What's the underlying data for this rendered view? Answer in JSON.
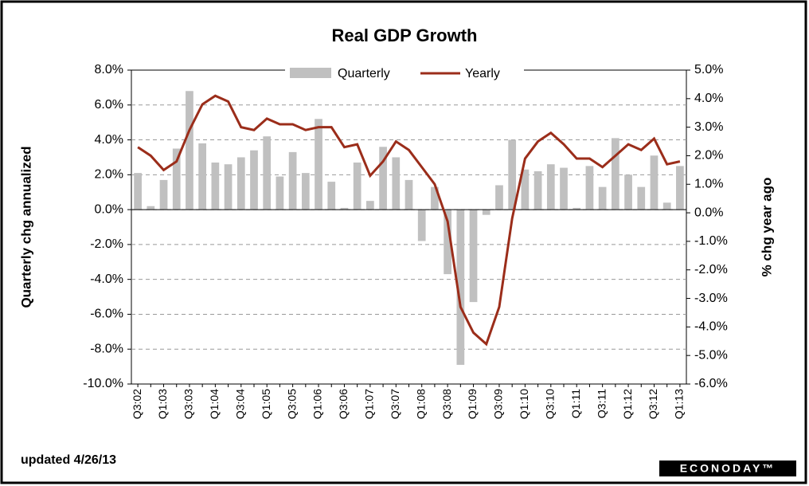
{
  "chart_data": {
    "type": "bar_line",
    "title": "Real GDP Growth",
    "y_label": "Quarterly chg annualized",
    "y2_label": "% chg year ago",
    "footnote": "updated 4/26/13",
    "source": "ECONODAY™",
    "categories": [
      "Q3:02",
      null,
      "Q1:03",
      null,
      "Q3:03",
      null,
      "Q1:04",
      null,
      "Q3:04",
      null,
      "Q1:05",
      null,
      "Q3:05",
      null,
      "Q1:06",
      null,
      "Q3:06",
      null,
      "Q1:07",
      null,
      "Q3:07",
      null,
      "Q1:08",
      null,
      "Q3:08",
      null,
      "Q1:09",
      null,
      "Q3:09",
      null,
      "Q1:10",
      null,
      "Q3:10",
      null,
      "Q1:11",
      null,
      "Q3:11",
      null,
      "Q1:12",
      null,
      "Q3:12",
      null,
      "Q1:13"
    ],
    "series": [
      {
        "name": "Quarterly",
        "color": "#c0c0c0",
        "values": [
          2.1,
          0.2,
          1.7,
          3.5,
          6.8,
          3.8,
          2.7,
          2.6,
          3.0,
          3.4,
          4.2,
          1.9,
          3.3,
          2.1,
          5.2,
          1.6,
          0.1,
          2.7,
          0.5,
          3.6,
          3.0,
          1.7,
          -1.8,
          1.3,
          -3.7,
          -8.9,
          -5.3,
          -0.3,
          1.4,
          4.0,
          2.3,
          2.2,
          2.6,
          2.4,
          0.1,
          2.5,
          1.3,
          4.1,
          2.0,
          1.3,
          3.1,
          0.4,
          2.5
        ]
      },
      {
        "name": "Yearly",
        "color": "#9b2d1a",
        "axis": "y2",
        "values": [
          2.3,
          2.0,
          1.5,
          1.8,
          2.9,
          3.8,
          4.1,
          3.9,
          3.0,
          2.9,
          3.3,
          3.1,
          3.1,
          2.9,
          3.0,
          3.0,
          2.3,
          2.4,
          1.3,
          1.8,
          2.5,
          2.2,
          1.6,
          1.0,
          -0.3,
          -3.3,
          -4.2,
          -4.6,
          -3.3,
          -0.2,
          1.9,
          2.5,
          2.8,
          2.4,
          1.9,
          1.9,
          1.6,
          2.0,
          2.4,
          2.2,
          2.6,
          1.7,
          1.8
        ]
      }
    ],
    "ylim": [
      -10,
      8
    ],
    "yticks": [
      {
        "value": 8,
        "label": "8.0%"
      },
      {
        "value": 6,
        "label": "6.0%"
      },
      {
        "value": 4,
        "label": "4.0%"
      },
      {
        "value": 2,
        "label": "2.0%"
      },
      {
        "value": 0,
        "label": "0.0%"
      },
      {
        "value": -2,
        "label": "-2.0%"
      },
      {
        "value": -4,
        "label": "-4.0%"
      },
      {
        "value": -6,
        "label": "-6.0%"
      },
      {
        "value": -8,
        "label": "-8.0%"
      },
      {
        "value": -10,
        "label": "-10.0%"
      }
    ],
    "y2lim": [
      -6,
      5
    ],
    "y2ticks": [
      {
        "value": 5,
        "label": "5.0%"
      },
      {
        "value": 4,
        "label": "4.0%"
      },
      {
        "value": 3,
        "label": "3.0%"
      },
      {
        "value": 2,
        "label": "2.0%"
      },
      {
        "value": 1,
        "label": "1.0%"
      },
      {
        "value": 0,
        "label": "0.0%"
      },
      {
        "value": -1,
        "label": "-1.0%"
      },
      {
        "value": -2,
        "label": "-2.0%"
      },
      {
        "value": -3,
        "label": "-3.0%"
      },
      {
        "value": -4,
        "label": "-4.0%"
      },
      {
        "value": -5,
        "label": "-5.0%"
      },
      {
        "value": -6,
        "label": "-6.0%"
      }
    ],
    "grid": true,
    "legend": "top"
  }
}
